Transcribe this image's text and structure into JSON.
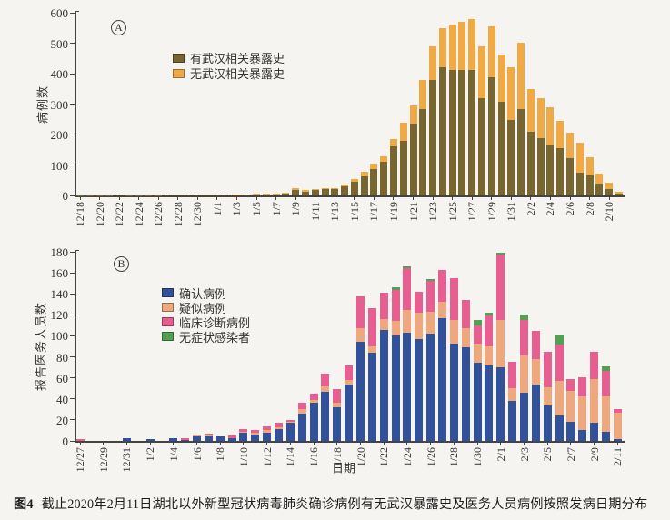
{
  "caption": {
    "prefix": "图4",
    "text": "截止2020年2月11日湖北以外新型冠状病毒肺炎确诊病例有无武汉暴露史及医务人员病例按照发病日期分布"
  },
  "chart_data": [
    {
      "type": "bar",
      "panel_label": "A",
      "title": "",
      "ylabel": "病例数",
      "xlabel": "",
      "ylim": [
        0,
        600
      ],
      "ytick_step": 100,
      "grid": false,
      "legend_position": "upper-left-inside",
      "categories": [
        "12/18",
        "12/19",
        "12/20",
        "12/21",
        "12/22",
        "12/23",
        "12/24",
        "12/25",
        "12/26",
        "12/27",
        "12/28",
        "12/29",
        "12/30",
        "12/31",
        "1/1",
        "1/2",
        "1/3",
        "1/4",
        "1/5",
        "1/6",
        "1/7",
        "1/8",
        "1/9",
        "1/10",
        "1/11",
        "1/12",
        "1/13",
        "1/14",
        "1/15",
        "1/16",
        "1/17",
        "1/18",
        "1/19",
        "1/20",
        "1/21",
        "1/22",
        "1/23",
        "1/24",
        "1/25",
        "1/26",
        "1/27",
        "1/28",
        "1/29",
        "1/30",
        "1/31",
        "2/1",
        "2/2",
        "2/3",
        "2/4",
        "2/5",
        "2/6",
        "2/7",
        "2/8",
        "2/9",
        "2/10",
        "2/11"
      ],
      "xtick_every": 2,
      "series": [
        {
          "name": "有武汉相关暴露史",
          "color": "#786631",
          "values": [
            1,
            1,
            1,
            1,
            2,
            1,
            1,
            1,
            1,
            2,
            2,
            2,
            3,
            2,
            2,
            2,
            3,
            3,
            4,
            4,
            5,
            7,
            19,
            13,
            19,
            20,
            20,
            30,
            45,
            63,
            88,
            110,
            162,
            180,
            237,
            283,
            380,
            420,
            412,
            412,
            413,
            318,
            387,
            306,
            248,
            283,
            208,
            189,
            165,
            154,
            122,
            75,
            67,
            40,
            20,
            7
          ]
        },
        {
          "name": "无武汉相关暴露史",
          "color": "#efaa45",
          "values": [
            0,
            0,
            0,
            0,
            0,
            0,
            0,
            0,
            0,
            0,
            0,
            0,
            0,
            0,
            0,
            0,
            1,
            0,
            1,
            1,
            1,
            1,
            6,
            5,
            3,
            3,
            3,
            5,
            10,
            14,
            17,
            18,
            22,
            58,
            58,
            97,
            110,
            128,
            148,
            158,
            167,
            172,
            167,
            158,
            174,
            218,
            142,
            129,
            126,
            91,
            84,
            99,
            59,
            32,
            23,
            5
          ]
        }
      ]
    },
    {
      "type": "bar",
      "panel_label": "B",
      "title": "",
      "ylabel": "报告医务人员数",
      "xlabel": "日期",
      "ylim": [
        0,
        180
      ],
      "ytick_step": 20,
      "grid": false,
      "legend_position": "upper-left-inside",
      "categories": [
        "12/27",
        "12/28",
        "12/29",
        "12/30",
        "12/31",
        "1/1",
        "1/2",
        "1/3",
        "1/4",
        "1/5",
        "1/6",
        "1/7",
        "1/8",
        "1/9",
        "1/10",
        "1/11",
        "1/12",
        "1/13",
        "1/14",
        "1/15",
        "1/16",
        "1/17",
        "1/18",
        "1/19",
        "1/20",
        "1/21",
        "1/22",
        "1/23",
        "1/24",
        "1/25",
        "1/26",
        "1/27",
        "1/28",
        "1/29",
        "1/30",
        "1/31",
        "2/1",
        "2/2",
        "2/3",
        "2/4",
        "2/5",
        "2/6",
        "2/7",
        "2/8",
        "2/9",
        "2/10",
        "2/11"
      ],
      "xtick_every": 2,
      "series": [
        {
          "name": "确认病例",
          "color": "#32519b",
          "values": [
            0,
            0,
            0,
            0,
            3,
            0,
            2,
            0,
            3,
            1,
            4,
            4,
            4,
            3,
            8,
            6,
            8,
            11,
            17,
            26,
            36,
            47,
            32,
            54,
            94,
            84,
            106,
            100,
            103,
            97,
            102,
            117,
            93,
            89,
            74,
            72,
            70,
            38,
            46,
            54,
            34,
            24,
            18,
            10,
            17,
            9,
            2
          ]
        },
        {
          "name": "疑似病例",
          "color": "#efa77e",
          "values": [
            0,
            0,
            0,
            0,
            0,
            0,
            0,
            0,
            0,
            0,
            2,
            2,
            0,
            0,
            1,
            2,
            2,
            2,
            1,
            4,
            3,
            5,
            4,
            4,
            13,
            6,
            10,
            14,
            22,
            25,
            21,
            15,
            22,
            18,
            19,
            18,
            45,
            12,
            35,
            24,
            17,
            33,
            30,
            32,
            42,
            33,
            25
          ]
        },
        {
          "name": "临床诊断病例",
          "color": "#e75f90",
          "values": [
            2,
            0,
            0,
            0,
            0,
            0,
            0,
            0,
            0,
            2,
            0,
            1,
            0,
            2,
            2,
            2,
            4,
            4,
            2,
            6,
            6,
            12,
            13,
            14,
            31,
            36,
            25,
            30,
            39,
            20,
            29,
            31,
            40,
            27,
            17,
            29,
            62,
            25,
            34,
            27,
            34,
            35,
            11,
            19,
            26,
            25,
            3
          ]
        },
        {
          "name": "无症状感染者",
          "color": "#52a153",
          "values": [
            0,
            0,
            0,
            0,
            0,
            0,
            0,
            0,
            0,
            0,
            0,
            0,
            0,
            0,
            0,
            0,
            0,
            0,
            0,
            0,
            0,
            0,
            0,
            0,
            0,
            0,
            0,
            2,
            2,
            0,
            2,
            0,
            0,
            0,
            5,
            3,
            2,
            0,
            5,
            0,
            0,
            9,
            0,
            0,
            0,
            4,
            0
          ]
        }
      ]
    }
  ],
  "layout_note": "two stacked bar panels sharing x pixel range"
}
